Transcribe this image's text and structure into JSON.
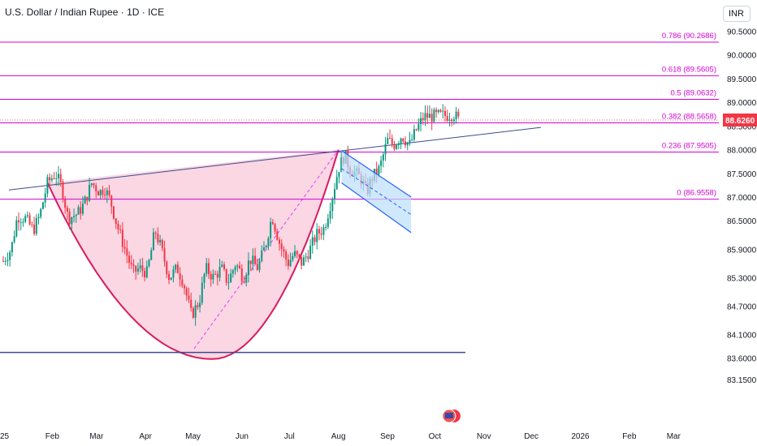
{
  "title": "U.S. Dollar / Indian Rupee · 1D · ICE",
  "currency_button": "INR",
  "current_price": "88.6260",
  "colors": {
    "fib": "#d500d5",
    "up": "#089981",
    "down": "#f23645",
    "price_tag": "#f23645",
    "cup_fill": "#f8bbd0",
    "trend": "#3d4a8f",
    "channel": "#2962ff"
  },
  "chart_data": {
    "type": "candlestick",
    "yticks": [
      "90.5000",
      "90.0000",
      "89.5000",
      "89.0000",
      "88.5000",
      "88.0000",
      "87.5000",
      "87.0000",
      "86.5000",
      "85.9000",
      "85.3000",
      "84.7000",
      "84.1000",
      "83.6000",
      "83.1500"
    ],
    "xticks": [
      "25",
      "Feb",
      "Mar",
      "Apr",
      "May",
      "Jun",
      "Jul",
      "Aug",
      "Sep",
      "Oct",
      "Nov",
      "Dec",
      "2026",
      "Feb",
      "Mar"
    ],
    "fib_levels": [
      {
        "label": "0.786 (90.2686)",
        "value": 90.2686
      },
      {
        "label": "0.618 (89.5605)",
        "value": 89.5605
      },
      {
        "label": "0.5 (89.0632)",
        "value": 89.0632
      },
      {
        "label": "0.382 (88.5658)",
        "value": 88.5658
      },
      {
        "label": "0.236 (87.9505)",
        "value": 87.9505
      },
      {
        "label": "0 (86.9558)",
        "value": 86.9558
      }
    ],
    "support_level": 83.72,
    "keypoints": [
      [
        "2025-01-01",
        85.65
      ],
      [
        "2025-01-06",
        85.9
      ],
      [
        "2025-01-10",
        86.6
      ],
      [
        "2025-01-15",
        86.55
      ],
      [
        "2025-01-20",
        86.3
      ],
      [
        "2025-01-24",
        86.6
      ],
      [
        "2025-01-29",
        87.3
      ],
      [
        "2025-02-03",
        87.5
      ],
      [
        "2025-02-07",
        87.2
      ],
      [
        "2025-02-11",
        86.55
      ],
      [
        "2025-02-17",
        86.65
      ],
      [
        "2025-02-21",
        86.85
      ],
      [
        "2025-02-26",
        87.3
      ],
      [
        "2025-03-03",
        87.1
      ],
      [
        "2025-03-06",
        87.2
      ],
      [
        "2025-03-10",
        86.9
      ],
      [
        "2025-03-14",
        86.4
      ],
      [
        "2025-03-19",
        85.9
      ],
      [
        "2025-03-24",
        85.4
      ],
      [
        "2025-03-28",
        85.5
      ],
      [
        "2025-04-02",
        85.4
      ],
      [
        "2025-04-07",
        86.3
      ],
      [
        "2025-04-11",
        85.9
      ],
      [
        "2025-04-16",
        85.3
      ],
      [
        "2025-04-21",
        85.5
      ],
      [
        "2025-04-25",
        85.2
      ],
      [
        "2025-04-30",
        84.5
      ],
      [
        "2025-05-05",
        84.8
      ],
      [
        "2025-05-09",
        85.5
      ],
      [
        "2025-05-14",
        85.3
      ],
      [
        "2025-05-19",
        85.5
      ],
      [
        "2025-05-23",
        85.2
      ],
      [
        "2025-05-28",
        85.6
      ],
      [
        "2025-06-02",
        85.3
      ],
      [
        "2025-06-06",
        85.7
      ],
      [
        "2025-06-11",
        85.5
      ],
      [
        "2025-06-16",
        86.0
      ],
      [
        "2025-06-20",
        86.6
      ],
      [
        "2025-06-25",
        86.0
      ],
      [
        "2025-06-30",
        85.6
      ],
      [
        "2025-07-04",
        85.8
      ],
      [
        "2025-07-09",
        85.6
      ],
      [
        "2025-07-14",
        85.9
      ],
      [
        "2025-07-18",
        86.2
      ],
      [
        "2025-07-23",
        86.35
      ],
      [
        "2025-07-28",
        87.0
      ],
      [
        "2025-08-01",
        87.6
      ],
      [
        "2025-08-05",
        87.9
      ],
      [
        "2025-08-08",
        87.6
      ],
      [
        "2025-08-12",
        87.5
      ],
      [
        "2025-08-15",
        87.4
      ],
      [
        "2025-08-19",
        87.1
      ],
      [
        "2025-08-22",
        87.4
      ],
      [
        "2025-08-27",
        87.6
      ],
      [
        "2025-09-01",
        88.2
      ],
      [
        "2025-09-05",
        88.1
      ],
      [
        "2025-09-10",
        88.3
      ],
      [
        "2025-09-15",
        88.1
      ],
      [
        "2025-09-19",
        88.4
      ],
      [
        "2025-09-24",
        88.7
      ],
      [
        "2025-09-29",
        88.7
      ],
      [
        "2025-10-03",
        88.72
      ],
      [
        "2025-10-08",
        88.72
      ],
      [
        "2025-10-13",
        88.75
      ],
      [
        "2025-10-16",
        88.626
      ]
    ]
  }
}
